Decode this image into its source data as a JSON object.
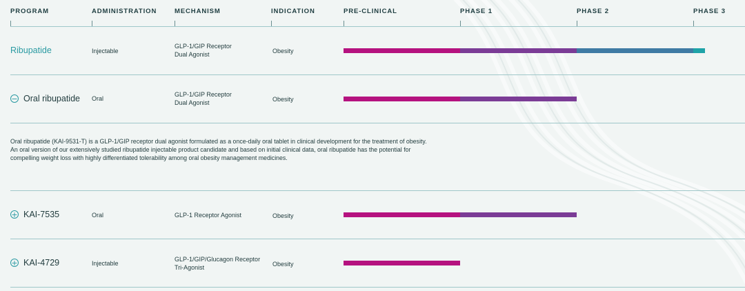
{
  "header": {
    "program": "PROGRAM",
    "administration": "ADMINISTRATION",
    "mechanism": "MECHANISM",
    "indication": "INDICATION",
    "preclinical": "PRE-CLINICAL",
    "phase1": "PHASE 1",
    "phase2": "PHASE 2",
    "phase3": "PHASE 3"
  },
  "phase_colors": {
    "preclinical": "#b5127f",
    "phase1": "#7b3c96",
    "phase2": "#3f7ba4",
    "phase3": "#1fa3a8"
  },
  "rows": [
    {
      "program": "Ribupatide",
      "toggle": "",
      "administration": "Injectable",
      "mechanism_line1": "GLP-1/GIP Receptor",
      "mechanism_line2": "Dual Agonist",
      "indication": "Obesity",
      "progress_phases": 3.1
    },
    {
      "program": "Oral ribupatide",
      "toggle": "−",
      "expanded": true,
      "administration": "Oral",
      "mechanism_line1": "GLP-1/GIP Receptor",
      "mechanism_line2": "Dual Agonist",
      "indication": "Obesity",
      "progress_phases": 2.0,
      "description": [
        "Oral ribupatide (KAI-9531-T) is a GLP-1/GIP receptor dual agonist formulated as a once-daily oral tablet in clinical development for the treatment of obesity.",
        "An oral version of our extensively studied ribupatide injectable product candidate and based on initial clinical data, oral ribupatide has the potential for",
        "compelling weight loss with highly differentiated tolerability among oral obesity management medicines."
      ]
    },
    {
      "program": "KAI-7535",
      "toggle": "+",
      "administration": "Oral",
      "mechanism_line1": "GLP-1 Receptor Agonist",
      "mechanism_line2": "",
      "indication": "Obesity",
      "progress_phases": 2.0
    },
    {
      "program": "KAI-4729",
      "toggle": "+",
      "administration": "Injectable",
      "mechanism_line1": "GLP-1/GIP/Glucagon Receptor",
      "mechanism_line2": "Tri-Agonist",
      "indication": "Obesity",
      "progress_phases": 1.0
    }
  ]
}
